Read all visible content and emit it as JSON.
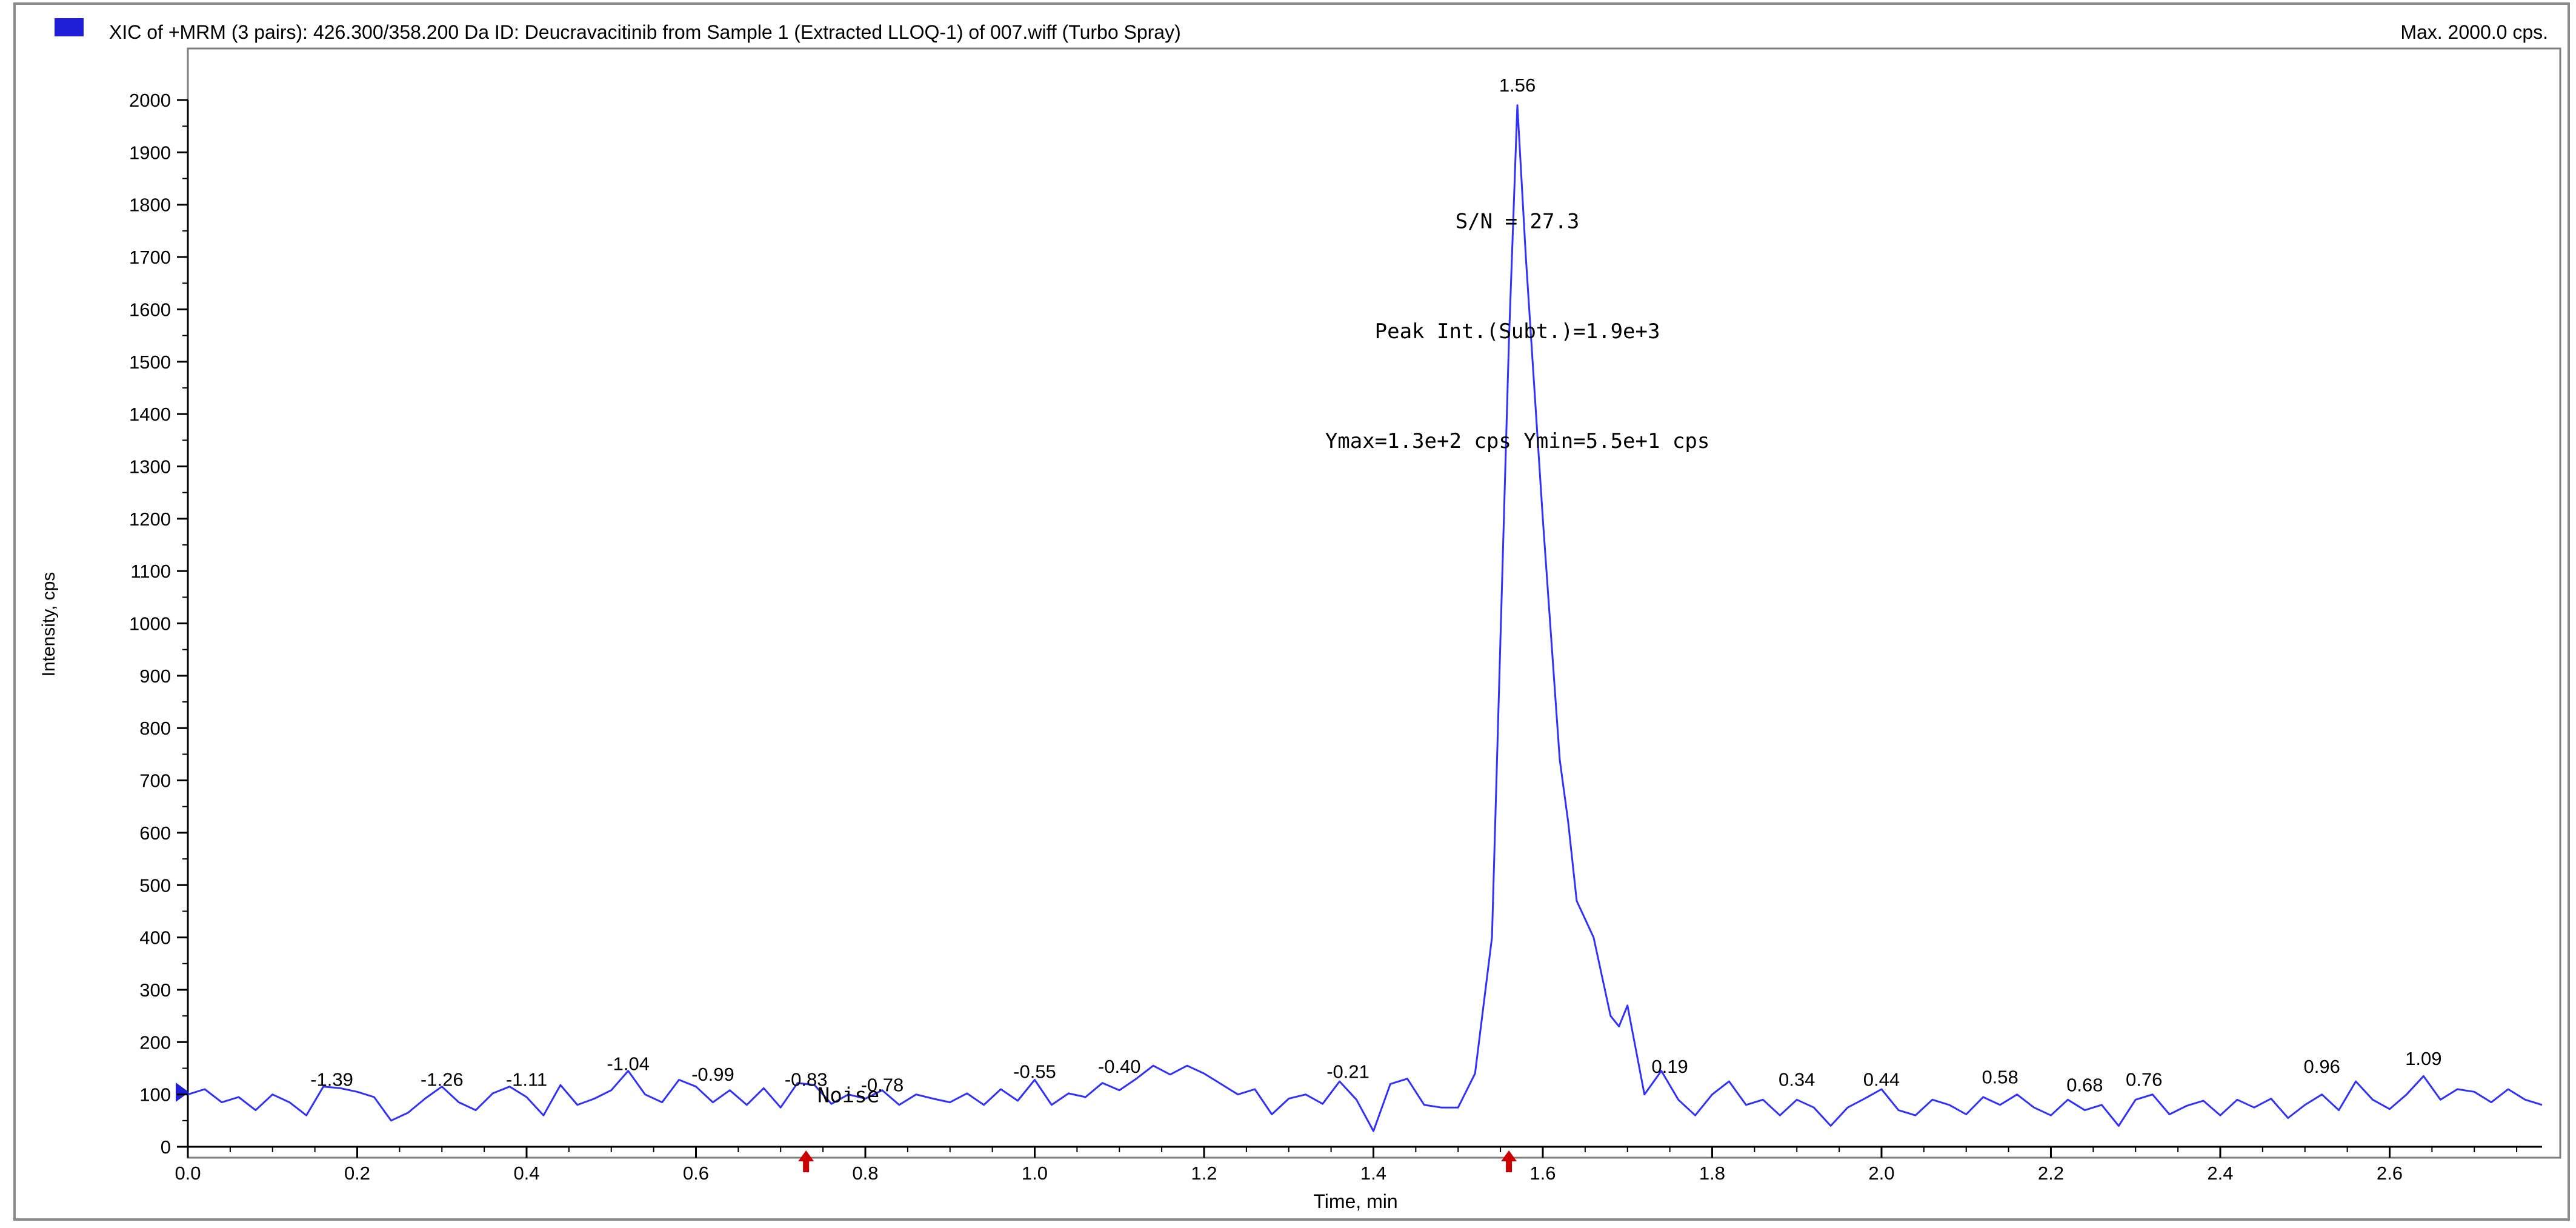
{
  "header": {
    "title": "XIC of +MRM (3 pairs): 426.300/358.200 Da ID: Deucravacitinib from Sample 1 (Extracted LLOQ-1) of 007.wiff (Turbo Spray)",
    "max_label": "Max. 2000.0 cps."
  },
  "colors": {
    "trace": "#3030ff",
    "frame": "#7f7f7f",
    "marker": "#cc0000",
    "legend": "#1f1fd6"
  },
  "chart_data": {
    "type": "line",
    "xlabel": "Time, min",
    "ylabel": "Intensity, cps",
    "xlim": [
      0.0,
      2.78
    ],
    "ylim": [
      0,
      2000
    ],
    "xticks": [
      0.0,
      0.2,
      0.4,
      0.6,
      0.8,
      1.0,
      1.2,
      1.4,
      1.6,
      1.8,
      2.0,
      2.2,
      2.4,
      2.6
    ],
    "xtick_labels": [
      "0.0",
      "0.2",
      "0.4",
      "0.6",
      "0.8",
      "1.0",
      "1.2",
      "1.4",
      "1.6",
      "1.8",
      "2.0",
      "2.2",
      "2.4",
      "2.6"
    ],
    "yticks": [
      0,
      100,
      200,
      300,
      400,
      500,
      600,
      700,
      800,
      900,
      1000,
      1100,
      1200,
      1300,
      1400,
      1500,
      1600,
      1700,
      1800,
      1900,
      2000
    ],
    "ytick_labels": [
      "0",
      "100",
      "200",
      "300",
      "400",
      "500",
      "600",
      "700",
      "800",
      "900",
      "1000",
      "1100",
      "1200",
      "1300",
      "1400",
      "1500",
      "1600",
      "1700",
      "1800",
      "1900",
      "2000"
    ],
    "series": [
      {
        "points": [
          [
            0.0,
            100
          ],
          [
            0.02,
            110
          ],
          [
            0.04,
            85
          ],
          [
            0.06,
            95
          ],
          [
            0.08,
            70
          ],
          [
            0.1,
            100
          ],
          [
            0.12,
            85
          ],
          [
            0.14,
            60
          ],
          [
            0.16,
            115
          ],
          [
            0.18,
            112
          ],
          [
            0.2,
            105
          ],
          [
            0.22,
            95
          ],
          [
            0.24,
            50
          ],
          [
            0.26,
            65
          ],
          [
            0.28,
            92
          ],
          [
            0.3,
            115
          ],
          [
            0.32,
            85
          ],
          [
            0.34,
            70
          ],
          [
            0.36,
            102
          ],
          [
            0.38,
            115
          ],
          [
            0.4,
            95
          ],
          [
            0.42,
            60
          ],
          [
            0.44,
            118
          ],
          [
            0.46,
            80
          ],
          [
            0.48,
            92
          ],
          [
            0.5,
            108
          ],
          [
            0.52,
            145
          ],
          [
            0.54,
            100
          ],
          [
            0.56,
            85
          ],
          [
            0.58,
            128
          ],
          [
            0.6,
            115
          ],
          [
            0.62,
            85
          ],
          [
            0.64,
            108
          ],
          [
            0.66,
            80
          ],
          [
            0.68,
            112
          ],
          [
            0.7,
            75
          ],
          [
            0.72,
            122
          ],
          [
            0.74,
            118
          ],
          [
            0.76,
            82
          ],
          [
            0.78,
            100
          ],
          [
            0.8,
            92
          ],
          [
            0.82,
            108
          ],
          [
            0.84,
            80
          ],
          [
            0.86,
            100
          ],
          [
            0.88,
            92
          ],
          [
            0.9,
            85
          ],
          [
            0.92,
            102
          ],
          [
            0.94,
            80
          ],
          [
            0.96,
            110
          ],
          [
            0.98,
            88
          ],
          [
            1.0,
            128
          ],
          [
            1.02,
            80
          ],
          [
            1.04,
            102
          ],
          [
            1.06,
            95
          ],
          [
            1.08,
            122
          ],
          [
            1.1,
            108
          ],
          [
            1.12,
            130
          ],
          [
            1.14,
            155
          ],
          [
            1.16,
            138
          ],
          [
            1.18,
            155
          ],
          [
            1.2,
            140
          ],
          [
            1.22,
            120
          ],
          [
            1.24,
            100
          ],
          [
            1.26,
            110
          ],
          [
            1.28,
            62
          ],
          [
            1.3,
            92
          ],
          [
            1.32,
            100
          ],
          [
            1.34,
            82
          ],
          [
            1.36,
            125
          ],
          [
            1.38,
            90
          ],
          [
            1.4,
            30
          ],
          [
            1.42,
            120
          ],
          [
            1.44,
            130
          ],
          [
            1.46,
            80
          ],
          [
            1.48,
            75
          ],
          [
            1.5,
            75
          ],
          [
            1.52,
            140
          ],
          [
            1.54,
            400
          ],
          [
            1.56,
            1540
          ],
          [
            1.57,
            1990
          ],
          [
            1.58,
            1700
          ],
          [
            1.6,
            1200
          ],
          [
            1.62,
            740
          ],
          [
            1.63,
            620
          ],
          [
            1.64,
            470
          ],
          [
            1.66,
            400
          ],
          [
            1.68,
            250
          ],
          [
            1.69,
            230
          ],
          [
            1.7,
            270
          ],
          [
            1.72,
            100
          ],
          [
            1.74,
            145
          ],
          [
            1.76,
            90
          ],
          [
            1.78,
            60
          ],
          [
            1.8,
            100
          ],
          [
            1.82,
            125
          ],
          [
            1.84,
            80
          ],
          [
            1.86,
            90
          ],
          [
            1.88,
            60
          ],
          [
            1.9,
            90
          ],
          [
            1.92,
            75
          ],
          [
            1.94,
            40
          ],
          [
            1.96,
            75
          ],
          [
            1.98,
            92
          ],
          [
            2.0,
            110
          ],
          [
            2.02,
            70
          ],
          [
            2.04,
            60
          ],
          [
            2.06,
            90
          ],
          [
            2.08,
            80
          ],
          [
            2.1,
            62
          ],
          [
            2.12,
            95
          ],
          [
            2.14,
            80
          ],
          [
            2.16,
            100
          ],
          [
            2.18,
            75
          ],
          [
            2.2,
            60
          ],
          [
            2.22,
            90
          ],
          [
            2.24,
            70
          ],
          [
            2.26,
            80
          ],
          [
            2.28,
            40
          ],
          [
            2.3,
            90
          ],
          [
            2.32,
            100
          ],
          [
            2.34,
            62
          ],
          [
            2.36,
            78
          ],
          [
            2.38,
            88
          ],
          [
            2.4,
            60
          ],
          [
            2.42,
            90
          ],
          [
            2.44,
            75
          ],
          [
            2.46,
            92
          ],
          [
            2.48,
            55
          ],
          [
            2.5,
            80
          ],
          [
            2.52,
            100
          ],
          [
            2.54,
            70
          ],
          [
            2.56,
            125
          ],
          [
            2.58,
            90
          ],
          [
            2.6,
            72
          ],
          [
            2.62,
            100
          ],
          [
            2.64,
            135
          ],
          [
            2.66,
            90
          ],
          [
            2.68,
            110
          ],
          [
            2.7,
            105
          ],
          [
            2.72,
            85
          ],
          [
            2.74,
            110
          ],
          [
            2.76,
            90
          ],
          [
            2.78,
            80
          ]
        ]
      }
    ],
    "peak_labels": [
      {
        "text": "-1.39",
        "x": 0.17,
        "y": 100
      },
      {
        "text": "-1.26",
        "x": 0.3,
        "y": 100
      },
      {
        "text": "-1.11",
        "x": 0.4,
        "y": 100
      },
      {
        "text": "-1.04",
        "x": 0.52,
        "y": 130
      },
      {
        "text": "-0.99",
        "x": 0.62,
        "y": 110
      },
      {
        "text": "-0.83",
        "x": 0.73,
        "y": 100
      },
      {
        "text": "-0.78",
        "x": 0.82,
        "y": 90
      },
      {
        "text": "-0.55",
        "x": 1.0,
        "y": 115
      },
      {
        "text": "-0.40",
        "x": 1.1,
        "y": 125
      },
      {
        "text": "-0.21",
        "x": 1.37,
        "y": 115
      },
      {
        "text": "1.56",
        "x": 1.57,
        "y": 2000
      },
      {
        "text": "0.19",
        "x": 1.75,
        "y": 125
      },
      {
        "text": "0.34",
        "x": 1.9,
        "y": 100
      },
      {
        "text": "0.44",
        "x": 2.0,
        "y": 100
      },
      {
        "text": "0.58",
        "x": 2.14,
        "y": 105
      },
      {
        "text": "0.68",
        "x": 2.24,
        "y": 90
      },
      {
        "text": "0.76",
        "x": 2.31,
        "y": 100
      },
      {
        "text": "0.96",
        "x": 2.52,
        "y": 125
      },
      {
        "text": "1.09",
        "x": 2.64,
        "y": 140
      }
    ],
    "annotations": [
      {
        "text": "S/N = 27.3",
        "x": 1.57,
        "y": 1755
      },
      {
        "text": "Peak Int.(Subt.)=1.9e+3",
        "x": 1.57,
        "y": 1545
      },
      {
        "text": "Ymax=1.3e+2 cps  Ymin=5.5e+1 cps",
        "x": 1.57,
        "y": 1335
      },
      {
        "text": "Noise",
        "x": 0.78,
        "y": 85
      }
    ],
    "arrow_markers": [
      0.73,
      1.56
    ]
  }
}
